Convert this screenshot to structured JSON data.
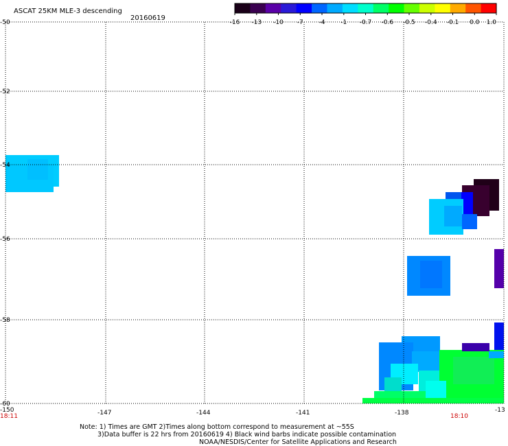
{
  "title": "ASCAT 25KM MLE-3 descending",
  "date": "20160619",
  "colorbar": {
    "colors": [
      "#1a0018",
      "#3a0050",
      "#5a00a8",
      "#2a1ad8",
      "#0000ff",
      "#0066ff",
      "#00aaff",
      "#00ddff",
      "#00ffcc",
      "#00ff66",
      "#00ff00",
      "#66ff00",
      "#ccff00",
      "#ffff00",
      "#ffaa00",
      "#ff5500",
      "#ff0000"
    ],
    "labels": [
      "-16",
      "-13",
      "-10",
      "-7",
      "-4",
      "-1",
      "-0.7",
      "-0.6",
      "-0.5",
      "-0.4",
      "-0.1",
      "0.0",
      "1.0"
    ]
  },
  "axes": {
    "lon_labels": [
      "-150",
      "-147",
      "-144",
      "-141",
      "-138",
      "-13"
    ],
    "lat_labels": [
      "-50",
      "-52",
      "-54",
      "-56",
      "-58",
      "-60"
    ]
  },
  "times": {
    "left": "18:11",
    "right": "18:10"
  },
  "notes": {
    "line1": "Note: 1) Times are GMT 2)Times along bottom correspond to measurement at ~55S",
    "line2": "3)Data buffer is 22 hrs from 20160619 4) Black wind barbs indicate possible contamination",
    "line3": "NOAA/NESDIS/Center for Satellite Applications and Research"
  },
  "colors": {
    "light_cyan": "#00ccff",
    "blue": "#0088ff",
    "deep_blue": "#0000ff",
    "purple": "#5500aa",
    "dark_purple": "#200018",
    "green": "#00ff33",
    "cyan": "#00ffee",
    "red_text": "#cc0000"
  }
}
